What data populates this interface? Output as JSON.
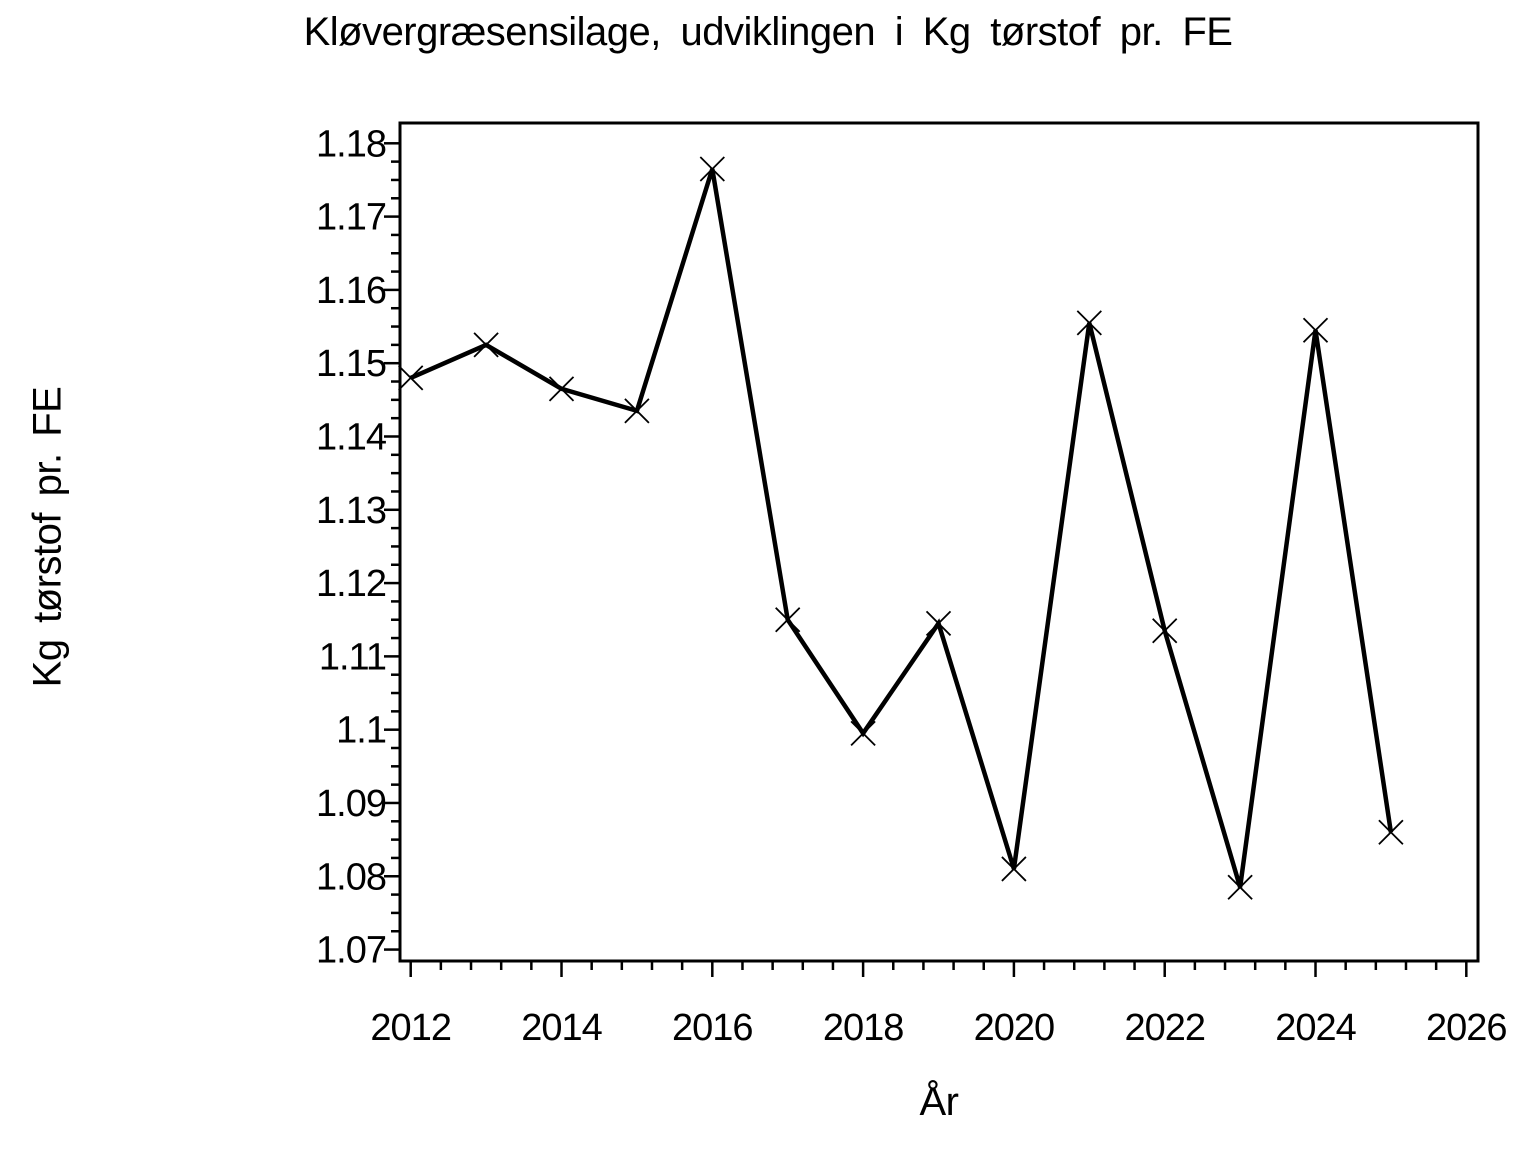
{
  "chart_data": {
    "type": "line",
    "title": "Kløvergræsensilage, udviklingen i Kg tørstof pr. FE",
    "xlabel": "År",
    "ylabel": "Kg tørstof pr. FE",
    "x": [
      2012,
      2013,
      2014,
      2015,
      2016,
      2017,
      2018,
      2019,
      2020,
      2021,
      2022,
      2023,
      2024,
      2025
    ],
    "y": [
      1.148,
      1.1525,
      1.1465,
      1.1435,
      1.1765,
      1.115,
      1.0995,
      1.1145,
      1.081,
      1.1555,
      1.1135,
      1.0785,
      1.1545,
      1.086
    ],
    "series_name": "Kg tørstof pr. FE",
    "marker": "x",
    "line_color": "#000000",
    "background_color": "#ffffff",
    "grid": false,
    "legend": null,
    "xlim": [
      2011.858,
      2026.155
    ],
    "ylim": [
      1.06844,
      1.18277
    ],
    "x_tick_values": [
      2012,
      2014,
      2016,
      2018,
      2020,
      2022,
      2024,
      2026
    ],
    "x_tick_labels": [
      "2012",
      "2014",
      "2016",
      "2018",
      "2020",
      "2022",
      "2024",
      "2026"
    ],
    "x_minor_step": 0.4,
    "y_tick_values": [
      1.07,
      1.08,
      1.09,
      1.1,
      1.11,
      1.12,
      1.13,
      1.14,
      1.15,
      1.16,
      1.17,
      1.18
    ],
    "y_tick_labels": [
      "1.07",
      "1.08",
      "1.09",
      "1.1",
      "1.11",
      "1.12",
      "1.13",
      "1.14",
      "1.15",
      "1.16",
      "1.17",
      "1.18"
    ],
    "y_minor_step": 0.0025
  }
}
